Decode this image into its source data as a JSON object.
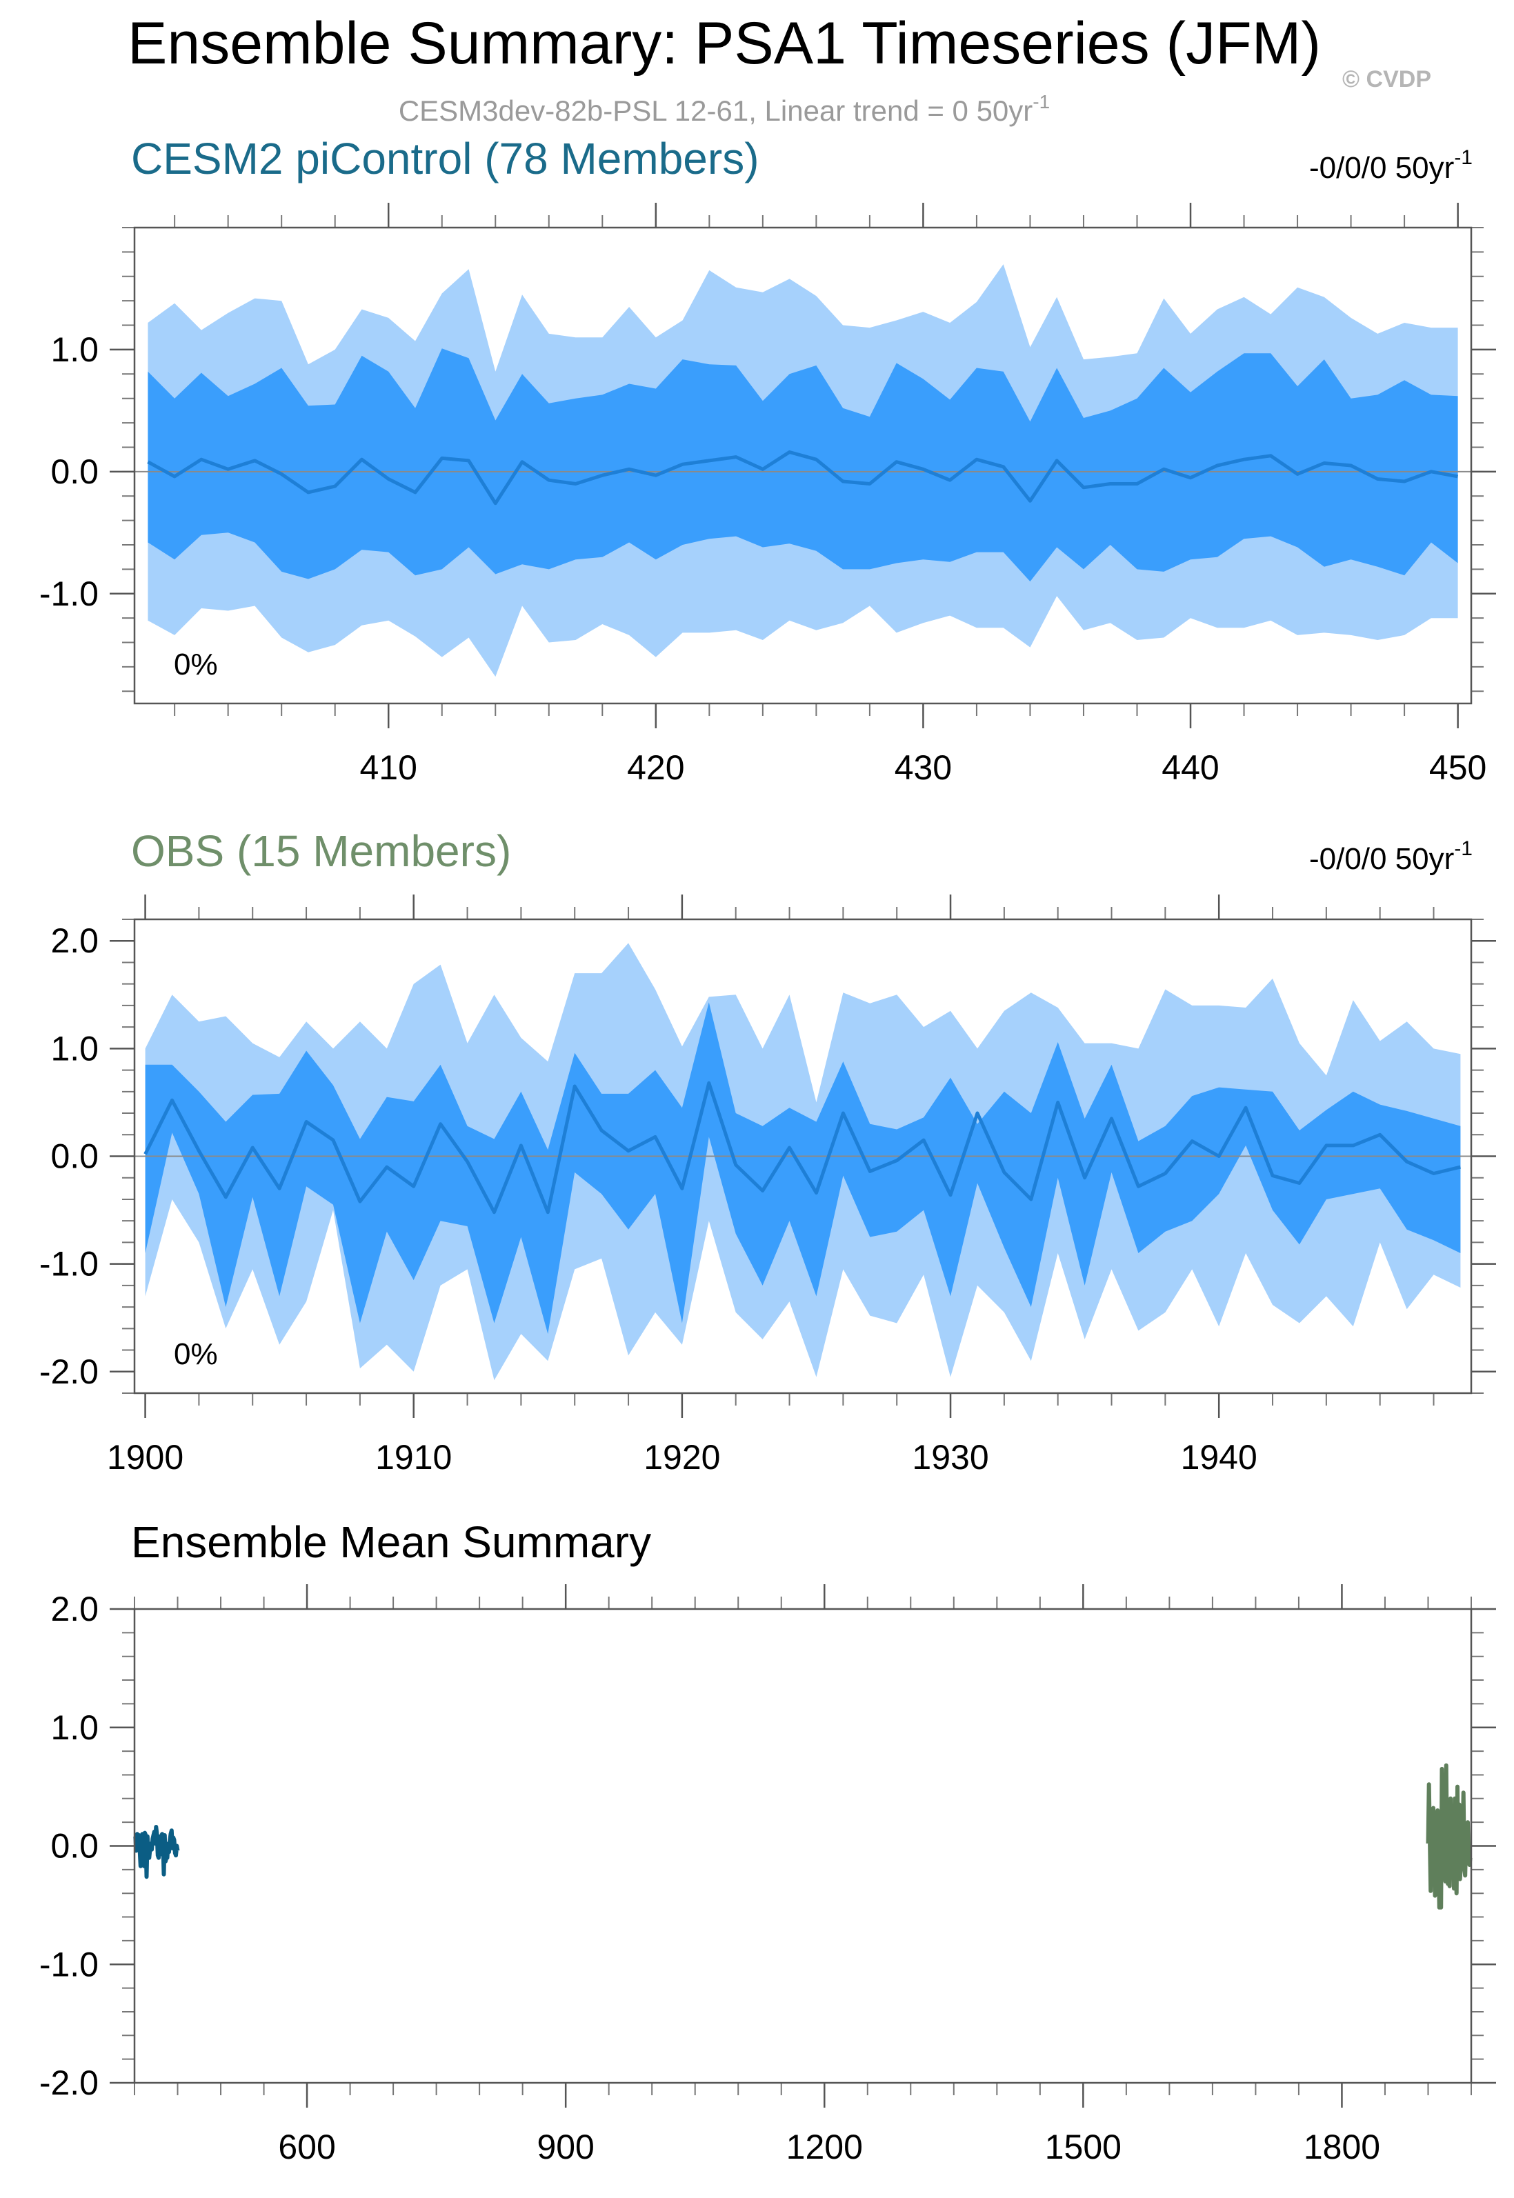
{
  "header": {
    "title": "Ensemble Summary: PSA1 Timeseries (JFM)",
    "subtitle": "CESM3dev-82b-PSL 12-61, Linear trend = 0 50yr",
    "subtitle_sup": "-1",
    "watermark": "© CVDP"
  },
  "colors": {
    "outer_band": "#a6d1fc",
    "inner_band": "#3a9efc",
    "mean_line": "#1e7fd6",
    "cesm_title": "#1a6b8a",
    "obs_title": "#6f8f6a",
    "cesm_mean": "#0b5d84",
    "obs_mean": "#5f7f5b"
  },
  "chart_data": [
    {
      "id": "cesm",
      "type": "area",
      "title": "CESM2 piControl (78 Members)",
      "trend_label": "-0/0/0 50yr",
      "trend_sup": "-1",
      "percent_label": "0%",
      "x_start": 401,
      "xlim": [
        400.5,
        450.5
      ],
      "ylim": [
        -1.9,
        2.0
      ],
      "xticks": [
        410,
        420,
        430,
        440,
        450
      ],
      "xtick_labels": [
        "410",
        "420",
        "430",
        "440",
        "450"
      ],
      "yticks": [
        -1.0,
        0.0,
        1.0
      ],
      "ytick_labels": [
        "-1.0",
        "0.0",
        "1.0"
      ],
      "series": [
        {
          "name": "outer_upper",
          "values": [
            1.22,
            1.38,
            1.16,
            1.3,
            1.42,
            1.4,
            0.88,
            1.0,
            1.33,
            1.26,
            1.07,
            1.46,
            1.66,
            0.82,
            1.45,
            1.13,
            1.1,
            1.1,
            1.35,
            1.1,
            1.24,
            1.65,
            1.51,
            1.47,
            1.58,
            1.44,
            1.2,
            1.18,
            1.24,
            1.31,
            1.22,
            1.39,
            1.7,
            1.02,
            1.43,
            0.92,
            0.94,
            0.97,
            1.42,
            1.13,
            1.33,
            1.43,
            1.29,
            1.51,
            1.43,
            1.26,
            1.13,
            1.22,
            1.18,
            1.18
          ]
        },
        {
          "name": "inner_upper",
          "values": [
            0.82,
            0.6,
            0.81,
            0.62,
            0.72,
            0.85,
            0.54,
            0.55,
            0.95,
            0.82,
            0.52,
            1.01,
            0.93,
            0.42,
            0.8,
            0.56,
            0.6,
            0.63,
            0.72,
            0.68,
            0.92,
            0.88,
            0.87,
            0.58,
            0.8,
            0.87,
            0.52,
            0.45,
            0.89,
            0.76,
            0.59,
            0.85,
            0.82,
            0.41,
            0.85,
            0.44,
            0.5,
            0.6,
            0.85,
            0.65,
            0.82,
            0.97,
            0.97,
            0.7,
            0.92,
            0.6,
            0.63,
            0.75,
            0.63,
            0.62
          ]
        },
        {
          "name": "mean",
          "values": [
            0.08,
            -0.04,
            0.1,
            0.02,
            0.09,
            -0.02,
            -0.17,
            -0.12,
            0.1,
            -0.06,
            -0.17,
            0.11,
            0.09,
            -0.26,
            0.08,
            -0.07,
            -0.1,
            -0.03,
            0.02,
            -0.03,
            0.06,
            0.09,
            0.12,
            0.02,
            0.16,
            0.1,
            -0.08,
            -0.1,
            0.08,
            0.02,
            -0.07,
            0.1,
            0.04,
            -0.24,
            0.09,
            -0.13,
            -0.1,
            -0.1,
            0.02,
            -0.05,
            0.05,
            0.1,
            0.13,
            -0.02,
            0.07,
            0.05,
            -0.06,
            -0.08,
            0.0,
            -0.04
          ]
        },
        {
          "name": "inner_lower",
          "values": [
            -0.58,
            -0.72,
            -0.52,
            -0.5,
            -0.58,
            -0.82,
            -0.88,
            -0.8,
            -0.64,
            -0.66,
            -0.85,
            -0.8,
            -0.62,
            -0.84,
            -0.76,
            -0.8,
            -0.72,
            -0.7,
            -0.58,
            -0.72,
            -0.6,
            -0.55,
            -0.53,
            -0.62,
            -0.59,
            -0.65,
            -0.8,
            -0.8,
            -0.75,
            -0.72,
            -0.74,
            -0.66,
            -0.66,
            -0.9,
            -0.62,
            -0.8,
            -0.6,
            -0.8,
            -0.82,
            -0.72,
            -0.7,
            -0.55,
            -0.53,
            -0.62,
            -0.78,
            -0.72,
            -0.78,
            -0.85,
            -0.58,
            -0.75
          ]
        },
        {
          "name": "outer_lower",
          "values": [
            -1.22,
            -1.34,
            -1.12,
            -1.14,
            -1.1,
            -1.36,
            -1.48,
            -1.42,
            -1.26,
            -1.22,
            -1.35,
            -1.52,
            -1.36,
            -1.68,
            -1.1,
            -1.4,
            -1.38,
            -1.25,
            -1.34,
            -1.52,
            -1.32,
            -1.32,
            -1.3,
            -1.38,
            -1.22,
            -1.3,
            -1.24,
            -1.1,
            -1.32,
            -1.24,
            -1.18,
            -1.28,
            -1.28,
            -1.44,
            -1.02,
            -1.3,
            -1.24,
            -1.38,
            -1.36,
            -1.2,
            -1.28,
            -1.28,
            -1.22,
            -1.34,
            -1.32,
            -1.34,
            -1.38,
            -1.34,
            -1.2,
            -1.2
          ]
        }
      ]
    },
    {
      "id": "obs",
      "type": "area",
      "title": "OBS (15 Members)",
      "trend_label": "-0/0/0 50yr",
      "trend_sup": "-1",
      "percent_label": "0%",
      "x_start": 1900,
      "xlim": [
        1899.6,
        1949.4
      ],
      "ylim": [
        -2.2,
        2.2
      ],
      "xticks": [
        1900,
        1910,
        1920,
        1930,
        1940
      ],
      "xtick_labels": [
        "1900",
        "1910",
        "1920",
        "1930",
        "1940"
      ],
      "yticks": [
        -2.0,
        -1.0,
        0.0,
        1.0,
        2.0
      ],
      "ytick_labels": [
        "-2.0",
        "-1.0",
        "0.0",
        "1.0",
        "2.0"
      ],
      "series": [
        {
          "name": "outer_upper",
          "values": [
            1.0,
            1.5,
            1.25,
            1.3,
            1.05,
            0.92,
            1.25,
            1.0,
            1.25,
            1.0,
            1.6,
            1.78,
            1.05,
            1.5,
            1.1,
            0.88,
            1.7,
            1.7,
            1.98,
            1.55,
            1.02,
            1.48,
            1.5,
            1.0,
            1.5,
            0.5,
            1.52,
            1.42,
            1.5,
            1.2,
            1.35,
            1.0,
            1.35,
            1.52,
            1.38,
            1.05,
            1.05,
            1.0,
            1.55,
            1.4,
            1.4,
            1.38,
            1.65,
            1.05,
            0.75,
            1.45,
            1.07,
            1.25,
            1.0,
            0.95
          ]
        },
        {
          "name": "inner_upper",
          "values": [
            0.85,
            0.85,
            0.6,
            0.32,
            0.57,
            0.58,
            0.98,
            0.66,
            0.16,
            0.55,
            0.51,
            0.85,
            0.28,
            0.16,
            0.6,
            0.06,
            0.96,
            0.58,
            0.58,
            0.8,
            0.45,
            1.43,
            0.4,
            0.28,
            0.45,
            0.32,
            0.88,
            0.3,
            0.25,
            0.36,
            0.73,
            0.3,
            0.6,
            0.4,
            1.06,
            0.35,
            0.85,
            0.14,
            0.28,
            0.56,
            0.64,
            0.62,
            0.6,
            0.24,
            0.43,
            0.6,
            0.48,
            0.42,
            0.35,
            0.28
          ]
        },
        {
          "name": "mean",
          "values": [
            0.02,
            0.52,
            0.05,
            -0.38,
            0.08,
            -0.3,
            0.32,
            0.15,
            -0.42,
            -0.1,
            -0.28,
            0.3,
            -0.05,
            -0.52,
            0.1,
            -0.52,
            0.65,
            0.24,
            0.05,
            0.18,
            -0.3,
            0.68,
            -0.08,
            -0.32,
            0.08,
            -0.34,
            0.4,
            -0.14,
            -0.04,
            0.15,
            -0.36,
            0.4,
            -0.15,
            -0.4,
            0.5,
            -0.2,
            0.35,
            -0.28,
            -0.16,
            0.14,
            0.0,
            0.45,
            -0.18,
            -0.25,
            0.1,
            0.1,
            0.2,
            -0.05,
            -0.16,
            -0.1
          ]
        },
        {
          "name": "inner_lower",
          "values": [
            -0.9,
            0.22,
            -0.35,
            -1.4,
            -0.38,
            -1.3,
            -0.28,
            -0.45,
            -1.55,
            -0.7,
            -1.15,
            -0.6,
            -0.65,
            -1.55,
            -0.75,
            -1.65,
            -0.15,
            -0.35,
            -0.68,
            -0.35,
            -1.55,
            0.18,
            -0.72,
            -1.2,
            -0.6,
            -1.3,
            -0.18,
            -0.75,
            -0.7,
            -0.5,
            -1.3,
            -0.25,
            -0.85,
            -1.4,
            -0.2,
            -1.2,
            -0.15,
            -0.9,
            -0.7,
            -0.6,
            -0.35,
            0.1,
            -0.5,
            -0.82,
            -0.4,
            -0.35,
            -0.3,
            -0.68,
            -0.78,
            -0.9
          ]
        },
        {
          "name": "outer_lower",
          "values": [
            -1.3,
            -0.4,
            -0.8,
            -1.6,
            -1.05,
            -1.75,
            -1.35,
            -0.5,
            -1.97,
            -1.75,
            -2.0,
            -1.2,
            -1.05,
            -2.08,
            -1.65,
            -1.9,
            -1.05,
            -0.95,
            -1.85,
            -1.45,
            -1.75,
            -0.6,
            -1.45,
            -1.7,
            -1.35,
            -2.05,
            -1.05,
            -1.48,
            -1.55,
            -1.1,
            -2.05,
            -1.2,
            -1.45,
            -1.9,
            -0.9,
            -1.7,
            -1.05,
            -1.62,
            -1.45,
            -1.05,
            -1.58,
            -0.9,
            -1.38,
            -1.55,
            -1.3,
            -1.58,
            -0.8,
            -1.42,
            -1.1,
            -1.22
          ]
        }
      ]
    },
    {
      "id": "mean_summary",
      "type": "line",
      "title": "Ensemble Mean Summary",
      "xlim": [
        400,
        1950
      ],
      "ylim": [
        -2.0,
        2.0
      ],
      "xticks": [
        600,
        900,
        1200,
        1500,
        1800
      ],
      "xtick_labels": [
        "600",
        "900",
        "1200",
        "1500",
        "1800"
      ],
      "yticks": [
        -2.0,
        -1.0,
        0.0,
        1.0,
        2.0
      ],
      "ytick_labels": [
        "-2.0",
        "-1.0",
        "0.0",
        "1.0",
        "2.0"
      ],
      "series": [
        {
          "name": "CESM2 piControl",
          "x_start": 401,
          "values": [
            0.08,
            -0.04,
            0.1,
            0.02,
            0.09,
            -0.02,
            -0.17,
            -0.12,
            0.1,
            -0.06,
            -0.17,
            0.11,
            0.09,
            -0.26,
            0.08,
            -0.07,
            -0.1,
            -0.03,
            0.02,
            -0.03,
            0.06,
            0.09,
            0.12,
            0.02,
            0.16,
            0.1,
            -0.08,
            -0.1,
            0.08,
            0.02,
            -0.07,
            0.1,
            0.04,
            -0.24,
            0.09,
            -0.13,
            -0.1,
            -0.1,
            0.02,
            -0.05,
            0.05,
            0.1,
            0.13,
            -0.02,
            0.07,
            0.05,
            -0.06,
            -0.08,
            0.0,
            -0.04
          ]
        },
        {
          "name": "OBS",
          "x_start": 1900,
          "values": [
            0.02,
            0.52,
            0.05,
            -0.38,
            0.08,
            -0.3,
            0.32,
            0.15,
            -0.42,
            -0.1,
            -0.28,
            0.3,
            -0.05,
            -0.52,
            0.1,
            -0.52,
            0.65,
            0.24,
            0.05,
            0.18,
            -0.3,
            0.68,
            -0.08,
            -0.32,
            0.08,
            -0.34,
            0.4,
            -0.14,
            -0.04,
            0.15,
            -0.36,
            0.4,
            -0.15,
            -0.4,
            0.5,
            -0.2,
            0.35,
            -0.28,
            -0.16,
            0.14,
            0.0,
            0.45,
            -0.18,
            -0.25,
            0.1,
            0.1,
            0.2,
            -0.05,
            -0.16,
            -0.1
          ]
        }
      ]
    }
  ]
}
